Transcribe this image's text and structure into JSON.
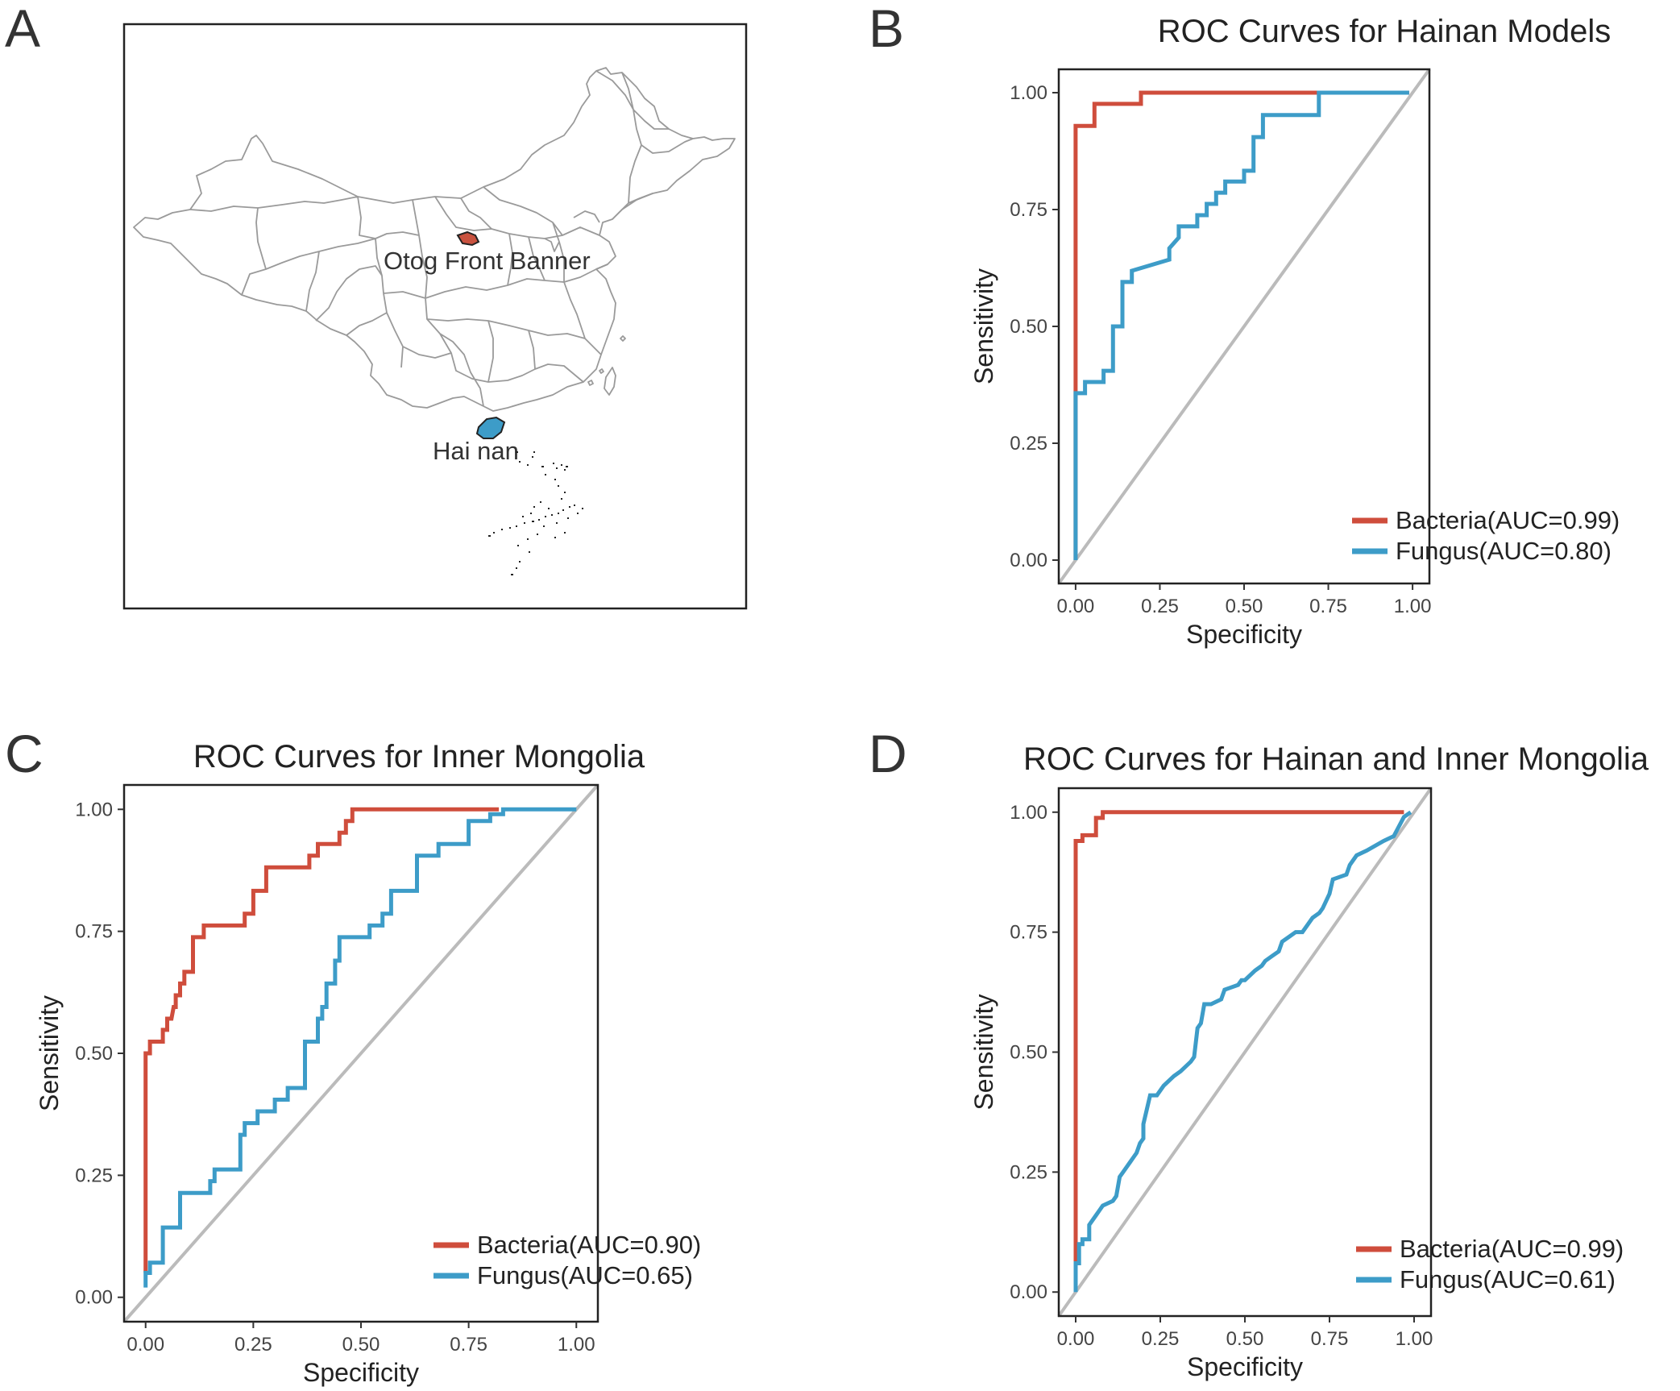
{
  "colors": {
    "bacteria": "#CF4D3C",
    "fungus": "#3D9CC8",
    "diagonal": "#BBBBBB",
    "frame": "#222222"
  },
  "map": {
    "letter": "A",
    "labels": {
      "otog": "Otog Front Banner",
      "hainan": "Hai nan"
    },
    "highlight_colors": {
      "otog": "#C9523F",
      "hainan": "#3D9CC8"
    }
  },
  "chart_data": [
    {
      "id": "B",
      "letter": "B",
      "type": "line",
      "title": "ROC Curves for Hainan Models",
      "xlabel": "Specificity",
      "ylabel": "Sensitivity",
      "xlim": [
        -0.05,
        1.05
      ],
      "ylim": [
        -0.05,
        1.05
      ],
      "x_reversed": false,
      "ticks": [
        0,
        0.25,
        0.5,
        0.75,
        1
      ],
      "tick_labels": [
        "0.00",
        "0.25",
        "0.50",
        "0.75",
        "1.00"
      ],
      "legend_position": "bottom-right",
      "series": [
        {
          "name": "Bacteria(AUC=0.99)",
          "color": "#CF4D3C",
          "x": [
            0,
            0,
            0,
            0.056,
            0.056,
            0.194,
            0.194,
            0.722,
            0.722,
            0.99
          ],
          "y": [
            0,
            0.36,
            0.929,
            0.929,
            0.976,
            0.976,
            1,
            1,
            1,
            1
          ]
        },
        {
          "name": "Fungus(AUC=0.80)",
          "color": "#3D9CC8",
          "x": [
            0,
            0,
            0.028,
            0.028,
            0.083,
            0.083,
            0.111,
            0.111,
            0.139,
            0.139,
            0.167,
            0.167,
            0.278,
            0.278,
            0.306,
            0.306,
            0.361,
            0.361,
            0.389,
            0.389,
            0.417,
            0.417,
            0.444,
            0.444,
            0.5,
            0.5,
            0.528,
            0.528,
            0.556,
            0.556,
            0.722,
            0.722,
            0.99
          ],
          "y": [
            0,
            0.357,
            0.357,
            0.381,
            0.381,
            0.405,
            0.405,
            0.5,
            0.5,
            0.595,
            0.595,
            0.619,
            0.643,
            0.667,
            0.69,
            0.714,
            0.714,
            0.738,
            0.738,
            0.762,
            0.762,
            0.786,
            0.786,
            0.81,
            0.81,
            0.833,
            0.833,
            0.905,
            0.905,
            0.952,
            0.952,
            1,
            1
          ]
        }
      ]
    },
    {
      "id": "C",
      "letter": "C",
      "type": "line",
      "title": "ROC Curves for Inner Mongolia",
      "xlabel": "Specificity",
      "ylabel": "Sensitivity",
      "xlim": [
        -0.05,
        1.05
      ],
      "ylim": [
        -0.05,
        1.05
      ],
      "x_reversed": false,
      "ticks": [
        0,
        0.25,
        0.5,
        0.75,
        1
      ],
      "tick_labels": [
        "0.00",
        "0.25",
        "0.50",
        "0.75",
        "1.00"
      ],
      "legend_position": "bottom-right",
      "series": [
        {
          "name": "Bacteria(AUC=0.90)",
          "color": "#CF4D3C",
          "x": [
            0,
            0,
            0.01,
            0.01,
            0.025,
            0.04,
            0.04,
            0.05,
            0.05,
            0.06,
            0.065,
            0.07,
            0.07,
            0.08,
            0.08,
            0.09,
            0.09,
            0.11,
            0.11,
            0.135,
            0.135,
            0.23,
            0.23,
            0.25,
            0.25,
            0.28,
            0.28,
            0.38,
            0.38,
            0.4,
            0.4,
            0.45,
            0.45,
            0.465,
            0.465,
            0.48,
            0.48,
            0.82
          ],
          "y": [
            0.05,
            0.5,
            0.5,
            0.524,
            0.524,
            0.524,
            0.548,
            0.548,
            0.571,
            0.571,
            0.595,
            0.595,
            0.619,
            0.619,
            0.643,
            0.643,
            0.667,
            0.667,
            0.738,
            0.738,
            0.762,
            0.762,
            0.786,
            0.786,
            0.833,
            0.833,
            0.881,
            0.881,
            0.905,
            0.905,
            0.929,
            0.929,
            0.952,
            0.952,
            0.976,
            0.976,
            1,
            1
          ]
        },
        {
          "name": "Fungus(AUC=0.65)",
          "color": "#3D9CC8",
          "x": [
            0,
            0,
            0.01,
            0.01,
            0.04,
            0.04,
            0.08,
            0.08,
            0.15,
            0.15,
            0.16,
            0.16,
            0.22,
            0.22,
            0.23,
            0.23,
            0.26,
            0.26,
            0.3,
            0.3,
            0.33,
            0.33,
            0.37,
            0.37,
            0.4,
            0.4,
            0.41,
            0.41,
            0.42,
            0.42,
            0.44,
            0.44,
            0.45,
            0.45,
            0.52,
            0.52,
            0.55,
            0.55,
            0.57,
            0.57,
            0.63,
            0.63,
            0.68,
            0.68,
            0.75,
            0.75,
            0.8,
            0.8,
            0.83,
            0.83,
            1
          ],
          "y": [
            0.02,
            0.05,
            0.05,
            0.071,
            0.071,
            0.143,
            0.143,
            0.214,
            0.214,
            0.238,
            0.238,
            0.262,
            0.262,
            0.333,
            0.333,
            0.357,
            0.357,
            0.381,
            0.381,
            0.405,
            0.405,
            0.429,
            0.429,
            0.524,
            0.524,
            0.571,
            0.571,
            0.595,
            0.595,
            0.643,
            0.643,
            0.69,
            0.69,
            0.738,
            0.738,
            0.762,
            0.762,
            0.786,
            0.786,
            0.833,
            0.833,
            0.905,
            0.905,
            0.929,
            0.929,
            0.976,
            0.976,
            0.99,
            0.99,
            1,
            1
          ]
        }
      ]
    },
    {
      "id": "D",
      "letter": "D",
      "type": "line",
      "title": "ROC Curves for Hainan and Inner Mongolia",
      "xlabel": "Specificity",
      "ylabel": "Sensitivity",
      "xlim": [
        -0.05,
        1.05
      ],
      "ylim": [
        -0.05,
        1.05
      ],
      "x_reversed": false,
      "ticks": [
        0,
        0.25,
        0.5,
        0.75,
        1
      ],
      "tick_labels": [
        "0.00",
        "0.25",
        "0.50",
        "0.75",
        "1.00"
      ],
      "legend_position": "bottom-right",
      "series": [
        {
          "name": "Bacteria(AUC=0.99)",
          "color": "#CF4D3C",
          "x": [
            0,
            0,
            0.02,
            0.02,
            0.06,
            0.06,
            0.08,
            0.08,
            0.97
          ],
          "y": [
            0.06,
            0.94,
            0.94,
            0.952,
            0.952,
            0.988,
            0.988,
            1,
            1
          ]
        },
        {
          "name": "Fungus(AUC=0.61)",
          "color": "#3D9CC8",
          "x": [
            0,
            0,
            0.01,
            0.01,
            0.02,
            0.02,
            0.04,
            0.04,
            0.06,
            0.07,
            0.08,
            0.11,
            0.12,
            0.13,
            0.14,
            0.15,
            0.16,
            0.17,
            0.18,
            0.19,
            0.2,
            0.2,
            0.21,
            0.22,
            0.23,
            0.24,
            0.26,
            0.29,
            0.31,
            0.34,
            0.35,
            0.36,
            0.37,
            0.38,
            0.39,
            0.4,
            0.43,
            0.44,
            0.48,
            0.49,
            0.5,
            0.53,
            0.55,
            0.56,
            0.58,
            0.6,
            0.61,
            0.63,
            0.65,
            0.67,
            0.7,
            0.72,
            0.73,
            0.75,
            0.76,
            0.8,
            0.81,
            0.83,
            0.86,
            0.91,
            0.94,
            0.97,
            0.99
          ],
          "y": [
            0,
            0.06,
            0.06,
            0.1,
            0.1,
            0.11,
            0.11,
            0.14,
            0.16,
            0.17,
            0.18,
            0.19,
            0.2,
            0.24,
            0.25,
            0.26,
            0.27,
            0.28,
            0.29,
            0.31,
            0.32,
            0.35,
            0.38,
            0.41,
            0.41,
            0.41,
            0.43,
            0.45,
            0.46,
            0.48,
            0.49,
            0.55,
            0.56,
            0.6,
            0.6,
            0.6,
            0.61,
            0.63,
            0.64,
            0.65,
            0.65,
            0.67,
            0.68,
            0.69,
            0.7,
            0.71,
            0.73,
            0.74,
            0.75,
            0.75,
            0.78,
            0.79,
            0.8,
            0.83,
            0.86,
            0.87,
            0.89,
            0.91,
            0.92,
            0.94,
            0.95,
            0.99,
            1
          ]
        }
      ]
    }
  ]
}
